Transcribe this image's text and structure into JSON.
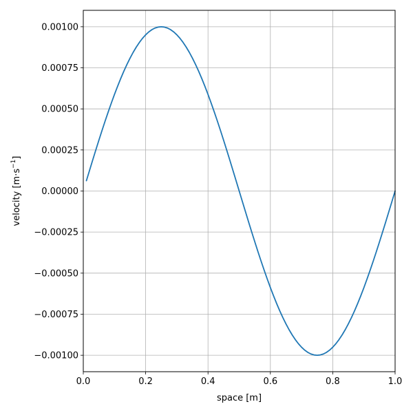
{
  "chart_data": {
    "type": "line",
    "title": "",
    "xlabel": "space [m]",
    "ylabel": "velocity [m·s",
    "ylabel_sup": "−1",
    "ylabel_end": "]",
    "xlim": [
      0.0,
      1.0
    ],
    "ylim": [
      -0.0011,
      0.0011
    ],
    "grid": true,
    "line_color": "#1f77b4",
    "x_ticks": [
      0.0,
      0.2,
      0.4,
      0.6,
      0.8,
      1.0
    ],
    "x_tick_labels": [
      "0.0",
      "0.2",
      "0.4",
      "0.6",
      "0.8",
      "1.0"
    ],
    "y_ticks": [
      0.001,
      0.00075,
      0.0005,
      0.00025,
      0.0,
      -0.00025,
      -0.0005,
      -0.00075,
      -0.001
    ],
    "y_tick_labels": [
      "0.00100",
      "0.00075",
      "0.00050",
      "0.00025",
      "0.00000",
      "−0.00025",
      "−0.00050",
      "−0.00075",
      "−0.00100"
    ],
    "series": [
      {
        "x_start": 0.01,
        "x_end": 1.0,
        "x_step": 0.01,
        "formula": "y = 0.001 * sin(2*pi*x)"
      }
    ]
  }
}
